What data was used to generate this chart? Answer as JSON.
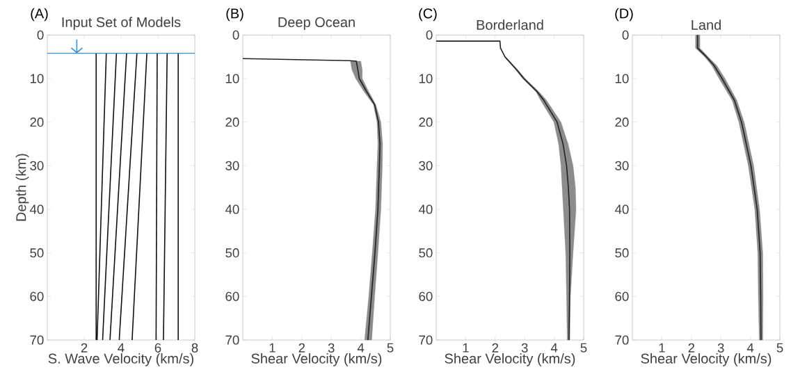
{
  "chart_data": [
    {
      "type": "line",
      "title": "Input Set of Models",
      "xlabel": "S. Wave Velocity (km/s)",
      "ylabel": "Depth (km)",
      "annotations": [
        "(A)"
      ],
      "xlim": [
        0,
        8
      ],
      "xticks": [
        2,
        4,
        6,
        8
      ],
      "ylim": [
        70,
        0
      ],
      "yticks": [
        0,
        10,
        20,
        30,
        40,
        50,
        60,
        70
      ],
      "ref_lines": [
        {
          "axis": "y",
          "value": 4.2,
          "color": "#3a8fd1"
        }
      ],
      "series": [
        {
          "color": "#111111",
          "x": [
            2.65,
            2.65
          ],
          "values": [
            4.2,
            70
          ]
        },
        {
          "color": "#111111",
          "x": [
            3.2,
            2.7
          ],
          "values": [
            4.2,
            70
          ]
        },
        {
          "color": "#111111",
          "x": [
            3.75,
            3.0
          ],
          "values": [
            4.2,
            70
          ]
        },
        {
          "color": "#111111",
          "x": [
            4.3,
            3.4
          ],
          "values": [
            4.2,
            70
          ]
        },
        {
          "color": "#111111",
          "x": [
            4.86,
            3.9
          ],
          "values": [
            4.2,
            70
          ]
        },
        {
          "color": "#111111",
          "x": [
            5.4,
            4.6
          ],
          "values": [
            4.2,
            70
          ]
        },
        {
          "color": "#111111",
          "x": [
            5.96,
            5.9
          ],
          "values": [
            4.2,
            70
          ]
        },
        {
          "color": "#111111",
          "x": [
            6.5,
            6.3
          ],
          "values": [
            4.2,
            70
          ]
        },
        {
          "color": "#111111",
          "x": [
            7.1,
            7.1
          ],
          "values": [
            4.2,
            70
          ]
        }
      ]
    },
    {
      "type": "line",
      "title": "Deep Ocean",
      "xlabel": "Shear Velocity (km/s)",
      "annotations": [
        "(B)"
      ],
      "xlim": [
        0,
        5
      ],
      "xticks": [
        1,
        2,
        3,
        4,
        5
      ],
      "ylim": [
        70,
        0
      ],
      "yticks": [
        0,
        10,
        20,
        30,
        40,
        50,
        60,
        70
      ],
      "series": [
        {
          "type": "area",
          "color": "#8c8c8c",
          "x": [
            3.65,
            3.7,
            3.83,
            4.11,
            4.43,
            4.55,
            4.58,
            4.55,
            4.5,
            4.39,
            4.27,
            4.13,
            4.37,
            4.47,
            4.58,
            4.68,
            4.73,
            4.74,
            4.68,
            4.51,
            4.27,
            4.05,
            4.05,
            4.0
          ],
          "values": [
            6,
            8,
            10,
            13,
            16,
            20,
            25,
            30,
            40,
            50,
            60,
            70,
            70,
            60,
            50,
            40,
            30,
            25,
            20,
            16,
            13,
            10,
            8,
            6
          ]
        },
        {
          "color": "#222222",
          "x": [
            0,
            3.62,
            3.85,
            3.95,
            4.2,
            4.47,
            4.6,
            4.65,
            4.63,
            4.58,
            4.48,
            4.36,
            4.24
          ],
          "values": [
            5.4,
            5.9,
            6,
            10,
            13,
            16,
            20,
            25,
            30,
            40,
            50,
            60,
            70
          ]
        }
      ]
    },
    {
      "type": "line",
      "title": "Borderland",
      "xlabel": "Shear Velocity (km/s)",
      "annotations": [
        "(C)"
      ],
      "xlim": [
        0,
        5
      ],
      "xticks": [
        1,
        2,
        3,
        4,
        5
      ],
      "ylim": [
        70,
        0
      ],
      "yticks": [
        0,
        10,
        20,
        30,
        40,
        50,
        60,
        70
      ],
      "series": [
        {
          "type": "area",
          "color": "#8c8c8c",
          "x": [
            2.31,
            2.7,
            2.93,
            3.38,
            3.54,
            3.99,
            4.15,
            4.23,
            4.31,
            4.39,
            4.42,
            4.44,
            4.53,
            4.55,
            4.64,
            4.74,
            4.72,
            4.64,
            4.47,
            4.23,
            3.74,
            3.48,
            3.02,
            2.77,
            2.36
          ],
          "values": [
            5,
            8,
            10,
            13,
            15,
            20,
            25,
            30,
            40,
            50,
            60,
            70,
            70,
            60,
            50,
            40,
            35,
            30,
            25,
            20,
            15,
            13,
            10,
            8,
            5
          ]
        },
        {
          "color": "#222222",
          "x": [
            0,
            2.16,
            2.18,
            2.33,
            2.73,
            2.97,
            3.42,
            3.65,
            3.83,
            4.1,
            4.3,
            4.42,
            4.48,
            4.52,
            4.53,
            4.52,
            4.5
          ],
          "values": [
            1.4,
            1.4,
            3,
            5,
            8,
            10,
            13,
            15,
            17,
            20,
            25,
            30,
            35,
            40,
            50,
            60,
            70
          ]
        }
      ]
    },
    {
      "type": "line",
      "title": "Land",
      "xlabel": "Shear Velocity (km/s)",
      "annotations": [
        "(D)"
      ],
      "xlim": [
        0,
        5
      ],
      "xticks": [
        1,
        2,
        3,
        4,
        5
      ],
      "ylim": [
        70,
        0
      ],
      "yticks": [
        0,
        10,
        20,
        30,
        40,
        50,
        60,
        70
      ],
      "series": [
        {
          "type": "area",
          "color": "#8c8c8c",
          "x": [
            2.14,
            2.14,
            2.45,
            2.69,
            2.94,
            3.38,
            3.61,
            3.93,
            4.15,
            4.25,
            4.27,
            4.3,
            4.42,
            4.43,
            4.42,
            4.31,
            4.11,
            3.79,
            3.54,
            3.14,
            2.86,
            2.57,
            2.29,
            2.29
          ],
          "values": [
            0,
            3,
            5,
            7,
            10,
            15,
            20,
            30,
            40,
            50,
            60,
            70,
            70,
            60,
            50,
            40,
            30,
            20,
            15,
            10,
            7,
            5,
            3,
            0
          ]
        },
        {
          "color": "#222222",
          "x": [
            2.21,
            2.21,
            2.51,
            2.77,
            3.04,
            3.46,
            3.7,
            4.02,
            4.23,
            4.33,
            4.35,
            4.36
          ],
          "values": [
            0,
            3,
            5,
            7,
            10,
            15,
            20,
            30,
            40,
            50,
            60,
            70
          ]
        }
      ]
    }
  ]
}
